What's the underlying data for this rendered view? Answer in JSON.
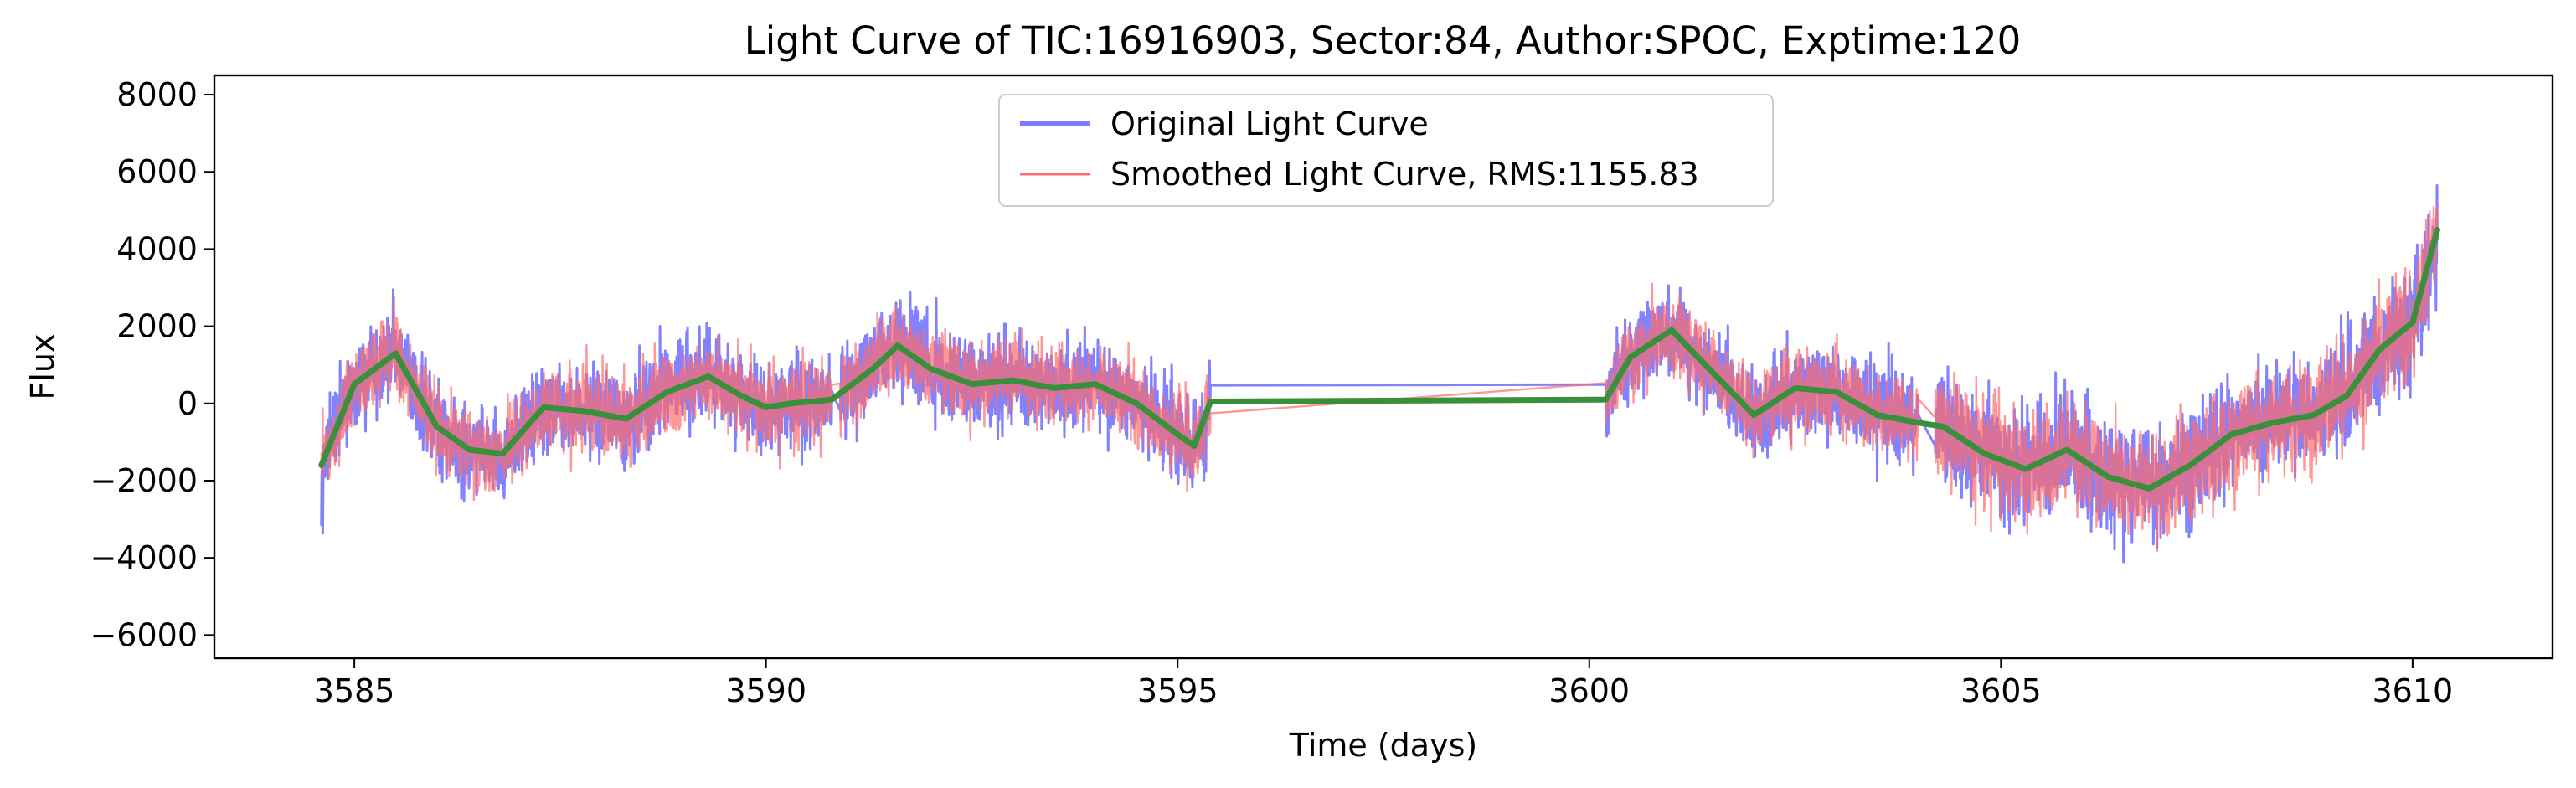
{
  "chart_data": {
    "type": "line",
    "title": "Light Curve of TIC:16916903, Sector:84, Author:SPOC, Exptime:120",
    "xlabel": "Time (days)",
    "ylabel": "Flux",
    "xlim": [
      3583.3,
      3611.7
    ],
    "ylim": [
      -6600,
      8500
    ],
    "xticks": [
      3585,
      3590,
      3595,
      3600,
      3605,
      3610
    ],
    "yticks": [
      -6000,
      -4000,
      -2000,
      0,
      2000,
      4000,
      6000,
      8000
    ],
    "grid": false,
    "legend_position": "top-center",
    "series": [
      {
        "name": "Original Light Curve",
        "color": "#7b7bff",
        "style": "noisy",
        "segments": [
          [
            3584.6,
            3590.8
          ],
          [
            3590.9,
            3595.4
          ],
          [
            3600.2,
            3604.0
          ],
          [
            3604.2,
            3610.3
          ]
        ]
      },
      {
        "name": "Smoothed Light Curve, RMS:1155.83",
        "color": "#ff6b6b",
        "style": "noisy",
        "segments": [
          [
            3584.6,
            3590.8
          ],
          [
            3590.9,
            3595.4
          ],
          [
            3600.2,
            3604.0
          ],
          [
            3604.2,
            3610.3
          ]
        ]
      },
      {
        "name": "",
        "color": "#3a8f3a",
        "style": "trend",
        "x": [
          3584.6,
          3585.0,
          3585.5,
          3586.0,
          3586.4,
          3586.8,
          3587.3,
          3587.8,
          3588.3,
          3588.8,
          3589.3,
          3589.7,
          3590.0,
          3590.3,
          3590.8,
          3591.3,
          3591.6,
          3592.0,
          3592.5,
          3593.0,
          3593.5,
          3594.0,
          3594.5,
          3595.0,
          3595.2,
          3595.4,
          3600.2,
          3600.5,
          3601.0,
          3601.5,
          3602.0,
          3602.5,
          3603.0,
          3603.5,
          3604.0,
          3604.3,
          3604.8,
          3605.3,
          3605.8,
          3606.3,
          3606.8,
          3607.3,
          3607.8,
          3608.3,
          3608.8,
          3609.2,
          3609.6,
          3610.0,
          3610.3
        ],
        "values": [
          -1600,
          500,
          1300,
          -600,
          -1200,
          -1300,
          -100,
          -200,
          -400,
          300,
          700,
          200,
          -100,
          0,
          100,
          900,
          1500,
          900,
          500,
          600,
          400,
          500,
          0,
          -800,
          -1100,
          50,
          100,
          1200,
          1900,
          800,
          -300,
          400,
          300,
          -300,
          -500,
          -600,
          -1300,
          -1700,
          -1200,
          -1900,
          -2200,
          -1600,
          -800,
          -500,
          -300,
          200,
          1400,
          2100,
          4500
        ]
      }
    ]
  }
}
